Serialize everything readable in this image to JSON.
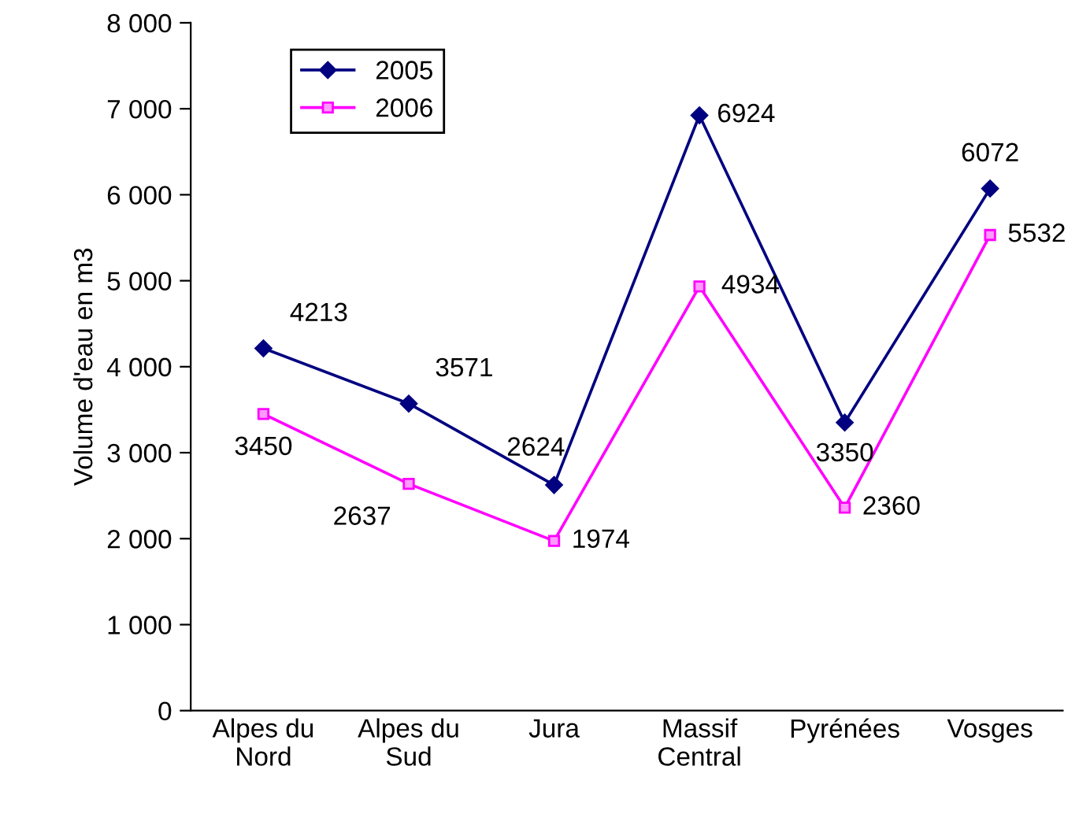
{
  "chart_data": {
    "type": "line",
    "ylabel": "Volume d'eau en m3",
    "categories": [
      "Alpes du\nNord",
      "Alpes du\nSud",
      "Jura",
      "Massif\nCentral",
      "Pyrénées",
      "Vosges"
    ],
    "series": [
      {
        "name": "2005",
        "color": "#000080",
        "marker": "diamond",
        "values": [
          4213,
          3571,
          2624,
          6924,
          3350,
          6072
        ]
      },
      {
        "name": "2006",
        "color": "#ff00ff",
        "marker": "square",
        "values": [
          3450,
          2637,
          1974,
          4934,
          2360,
          5532
        ]
      }
    ],
    "ylim": [
      0,
      8000
    ],
    "yticks": [
      0,
      {
        "value": 1000,
        "label": "1 000"
      },
      {
        "value": 2000,
        "label": "2 000"
      },
      {
        "value": 3000,
        "label": "3 000"
      },
      {
        "value": 4000,
        "label": "4 000"
      },
      {
        "value": 5000,
        "label": "5 000"
      },
      {
        "value": 6000,
        "label": "6 000"
      },
      {
        "value": 7000,
        "label": "7 000"
      },
      {
        "value": 8000,
        "label": "8 000"
      }
    ],
    "grid": false,
    "legend": "top left",
    "data_labels": true,
    "line_style": "solid"
  }
}
